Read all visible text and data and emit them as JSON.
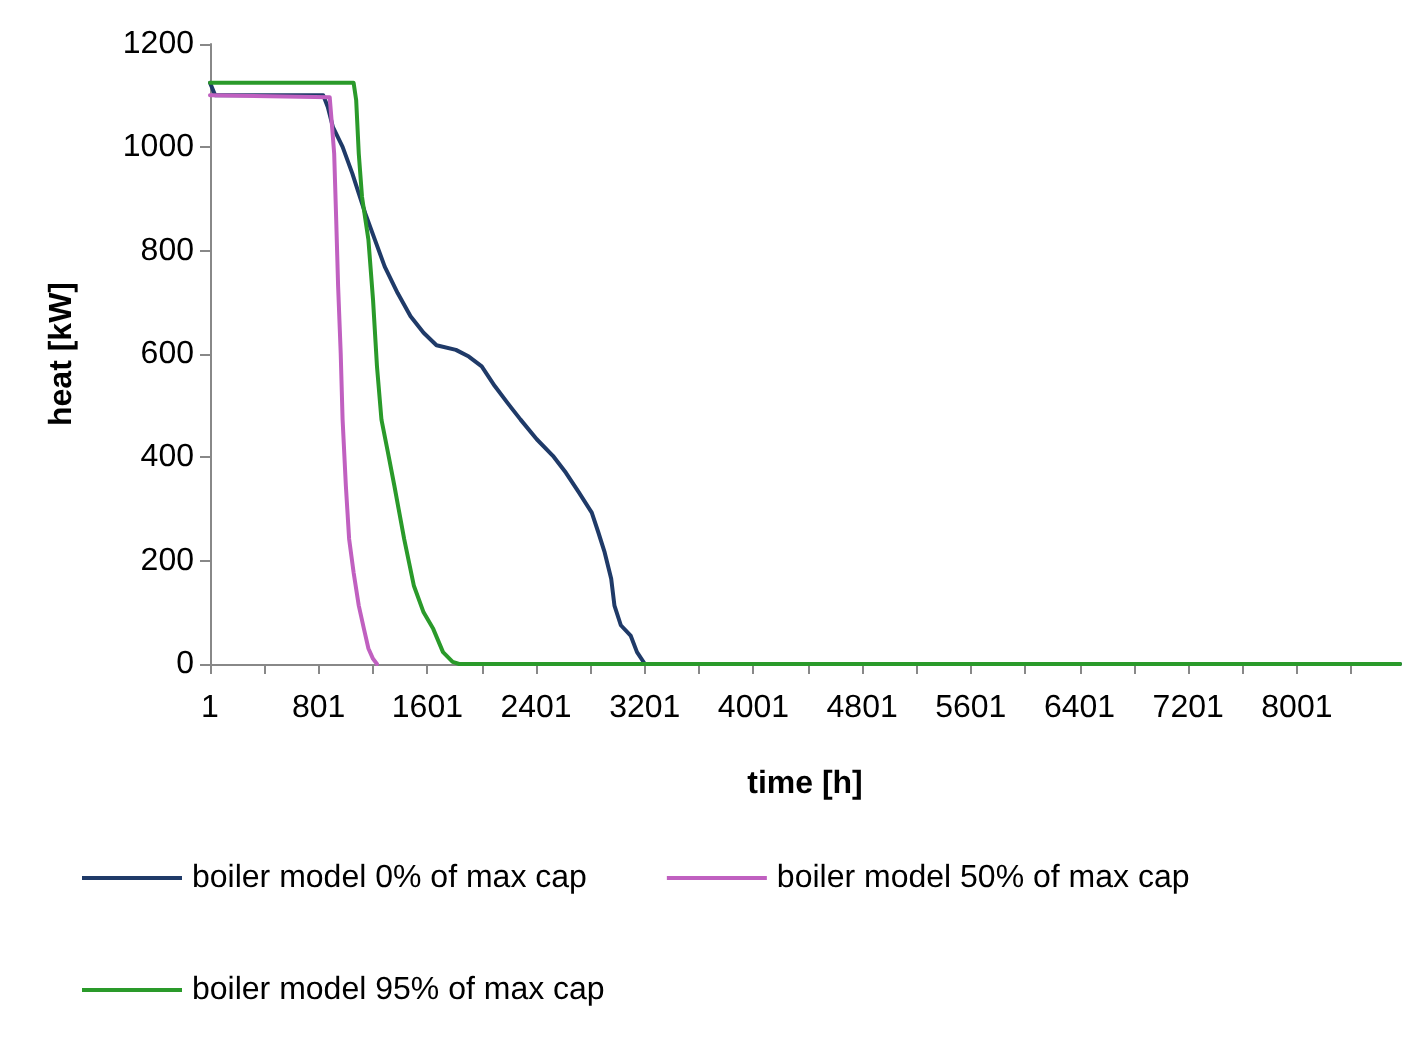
{
  "chart_data": {
    "type": "line",
    "xlabel": "time [h]",
    "ylabel": "heat [kW]",
    "xlim": [
      1,
      8760
    ],
    "xticks": [
      1,
      {
        "value": 401,
        "label": null
      },
      801,
      {
        "value": 1201,
        "label": null
      },
      1601,
      {
        "value": 2001,
        "label": null
      },
      2401,
      {
        "value": 2801,
        "label": null
      },
      3201,
      {
        "value": 3601,
        "label": null
      },
      4001,
      {
        "value": 4401,
        "label": null
      },
      4801,
      {
        "value": 5201,
        "label": null
      },
      5601,
      {
        "value": 6001,
        "label": null
      },
      6401,
      {
        "value": 6801,
        "label": null
      },
      7201,
      {
        "value": 7601,
        "label": null
      },
      8001,
      {
        "value": 8401,
        "label": null
      }
    ],
    "ylim": [
      0,
      1200
    ],
    "yticks": [
      0,
      200,
      400,
      600,
      800,
      1000,
      1200
    ],
    "grid": false,
    "legend": "bottom",
    "marker": "none",
    "line_style": "solid",
    "series": [
      {
        "name": "boiler model 0% of max cap",
        "color": "#1f3a68",
        "x": [
          1,
          39,
          834,
          868,
          906,
          977,
          1049,
          1096,
          1144,
          1215,
          1287,
          1382,
          1477,
          1573,
          1668,
          1811,
          1906,
          2001,
          2097,
          2192,
          2287,
          2406,
          2525,
          2621,
          2716,
          2811,
          2859,
          2906,
          2954,
          2978,
          3025,
          3097,
          3144,
          3202,
          8760
        ],
        "values": [
          1125,
          1101,
          1101,
          1078,
          1039,
          1001,
          949,
          911,
          872,
          821,
          769,
          718,
          673,
          641,
          617,
          608,
          595,
          576,
          538,
          505,
          473,
          435,
          403,
          370,
          332,
          293,
          255,
          216,
          165,
          113,
          75,
          55,
          23,
          0,
          0
        ]
      },
      {
        "name": "boiler model 50% of max cap",
        "color": "#c060c0",
        "x": [
          1,
          882,
          896,
          915,
          930,
          944,
          963,
          977,
          1001,
          1025,
          1058,
          1096,
          1134,
          1167,
          1201,
          1230
        ],
        "values": [
          1101,
          1097,
          1052,
          988,
          859,
          731,
          602,
          473,
          345,
          242,
          177,
          113,
          68,
          30,
          10,
          0
        ]
      },
      {
        "name": "boiler model 95% of max cap",
        "color": "#2a9a2a",
        "x": [
          1,
          1058,
          1077,
          1096,
          1120,
          1167,
          1201,
          1230,
          1263,
          1311,
          1358,
          1430,
          1501,
          1573,
          1644,
          1716,
          1787,
          1835,
          8760
        ],
        "values": [
          1125,
          1125,
          1091,
          988,
          904,
          821,
          705,
          576,
          473,
          409,
          345,
          242,
          152,
          100,
          68,
          23,
          4,
          0,
          0
        ]
      }
    ]
  }
}
